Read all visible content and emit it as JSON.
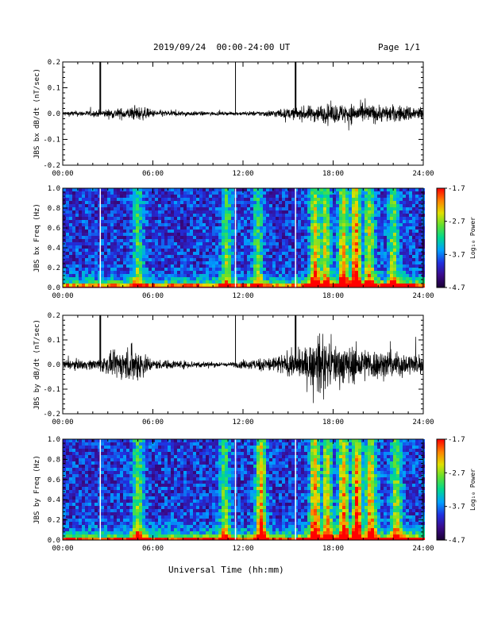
{
  "header": {
    "date_range": "2019/09/24  00:00-24:00 UT",
    "page": "Page 1/1"
  },
  "x_axis": {
    "label": "Universal Time (hh:mm)",
    "range_hours": [
      0,
      24
    ],
    "ticks": [
      "00:00",
      "06:00",
      "12:00",
      "18:00",
      "24:00"
    ]
  },
  "colors": {
    "trace": "#000000",
    "spectrogram_scale": [
      "#1a0033",
      "#3a0a8a",
      "#2030e0",
      "#00a0ff",
      "#00d890",
      "#60e030",
      "#e0e000",
      "#ff8000",
      "#ff0000"
    ]
  },
  "chart_data": [
    {
      "type": "line",
      "ylabel": "JBS bx dB/dt (nT/sec)",
      "ylim": [
        -0.2,
        0.2
      ],
      "yticks": [
        "0.2",
        "0.1",
        "0.0",
        "-0.1",
        "-0.2"
      ],
      "spikes_hours": [
        2.5,
        11.5,
        15.5
      ],
      "baseline": 0.0,
      "activity_envelope": [
        {
          "x": 0.0,
          "amp": 0.01
        },
        {
          "x": 2.0,
          "amp": 0.012
        },
        {
          "x": 4.5,
          "amp": 0.025
        },
        {
          "x": 5.0,
          "amp": 0.03
        },
        {
          "x": 6.0,
          "amp": 0.015
        },
        {
          "x": 8.0,
          "amp": 0.01
        },
        {
          "x": 11.0,
          "amp": 0.006
        },
        {
          "x": 13.0,
          "amp": 0.01
        },
        {
          "x": 15.0,
          "amp": 0.02
        },
        {
          "x": 17.0,
          "amp": 0.035
        },
        {
          "x": 19.0,
          "amp": 0.04
        },
        {
          "x": 21.0,
          "amp": 0.035
        },
        {
          "x": 24.0,
          "amp": 0.03
        }
      ]
    },
    {
      "type": "heatmap",
      "ylabel": "JBS bx Freq (Hz)",
      "ylim": [
        0.0,
        1.0
      ],
      "yticks": [
        "1.0",
        "0.8",
        "0.6",
        "0.4",
        "0.2",
        "0.0"
      ],
      "colorbar": {
        "label": "Log₁₀ Power",
        "ticks": [
          "-1.7",
          "-2.7",
          "-3.7",
          "-4.7"
        ],
        "range": [
          -4.7,
          -1.7
        ]
      },
      "gap_lines_hours": [
        2.5,
        11.5,
        15.5
      ],
      "bright_bands_hours": [
        {
          "x": 5.0,
          "level": 0.35
        },
        {
          "x": 10.9,
          "level": 0.45
        },
        {
          "x": 13.0,
          "level": 0.4
        },
        {
          "x": 16.8,
          "level": 0.6
        },
        {
          "x": 17.5,
          "level": 0.55
        },
        {
          "x": 18.7,
          "level": 0.6
        },
        {
          "x": 19.5,
          "level": 0.75
        },
        {
          "x": 20.4,
          "level": 0.55
        },
        {
          "x": 22.0,
          "level": 0.45
        }
      ]
    },
    {
      "type": "line",
      "ylabel": "JBS by dB/dt (nT/sec)",
      "ylim": [
        -0.2,
        0.2
      ],
      "yticks": [
        "0.2",
        "0.1",
        "0.0",
        "-0.1",
        "-0.2"
      ],
      "spikes_hours": [
        2.5,
        11.5,
        15.5
      ],
      "baseline": 0.0,
      "activity_envelope": [
        {
          "x": 0.0,
          "amp": 0.02
        },
        {
          "x": 2.0,
          "amp": 0.02
        },
        {
          "x": 4.8,
          "amp": 0.08
        },
        {
          "x": 5.3,
          "amp": 0.06
        },
        {
          "x": 6.0,
          "amp": 0.02
        },
        {
          "x": 9.0,
          "amp": 0.015
        },
        {
          "x": 11.0,
          "amp": 0.008
        },
        {
          "x": 13.5,
          "amp": 0.03
        },
        {
          "x": 16.0,
          "amp": 0.06
        },
        {
          "x": 17.0,
          "amp": 0.12
        },
        {
          "x": 18.0,
          "amp": 0.09
        },
        {
          "x": 20.0,
          "amp": 0.07
        },
        {
          "x": 24.0,
          "amp": 0.04
        }
      ]
    },
    {
      "type": "heatmap",
      "ylabel": "JBS by Freq (Hz)",
      "ylim": [
        0.0,
        1.0
      ],
      "yticks": [
        "1.0",
        "0.8",
        "0.6",
        "0.4",
        "0.2",
        "0.0"
      ],
      "colorbar": {
        "label": "Log₁₀ Power",
        "ticks": [
          "-1.7",
          "-2.7",
          "-3.7",
          "-4.7"
        ],
        "range": [
          -4.7,
          -1.7
        ]
      },
      "gap_lines_hours": [
        2.5,
        11.5,
        15.5
      ],
      "bright_bands_hours": [
        {
          "x": 5.0,
          "level": 0.45
        },
        {
          "x": 10.8,
          "level": 0.45
        },
        {
          "x": 13.2,
          "level": 0.7
        },
        {
          "x": 16.8,
          "level": 0.7
        },
        {
          "x": 17.6,
          "level": 0.6
        },
        {
          "x": 18.7,
          "level": 0.65
        },
        {
          "x": 19.6,
          "level": 0.8
        },
        {
          "x": 20.5,
          "level": 0.65
        },
        {
          "x": 22.2,
          "level": 0.5
        }
      ]
    }
  ]
}
